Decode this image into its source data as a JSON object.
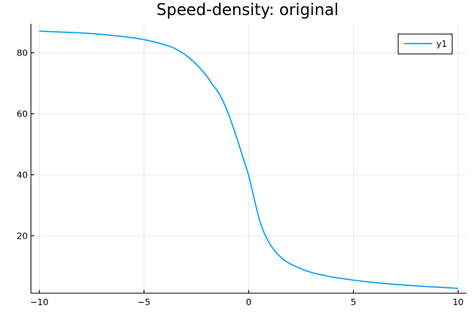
{
  "chart_data": {
    "type": "line",
    "title": "Speed-density: original",
    "xlabel": "",
    "ylabel": "",
    "xlim": [
      -10.4,
      10.4
    ],
    "ylim": [
      1.2,
      89.5
    ],
    "xticks": [
      -10,
      -5,
      0,
      5,
      10
    ],
    "xtick_labels": [
      "−10",
      "−5",
      "0",
      "5",
      "10"
    ],
    "yticks": [
      20,
      40,
      60,
      80
    ],
    "ytick_labels": [
      "20",
      "40",
      "60",
      "80"
    ],
    "grid": true,
    "legend": "top-right",
    "series": [
      {
        "name": "y1",
        "color": "#009af9",
        "x": [
          -10,
          -9,
          -8,
          -7,
          -6,
          -5,
          -4,
          -3.5,
          -3,
          -2.5,
          -2,
          -1.75,
          -1.5,
          -1.25,
          -1,
          -0.75,
          -0.5,
          -0.25,
          0,
          0.25,
          0.5,
          0.75,
          1,
          1.25,
          1.5,
          1.75,
          2,
          2.5,
          3,
          3.5,
          4,
          5,
          6,
          7,
          8,
          9,
          10
        ],
        "y": [
          87.1,
          86.8,
          86.5,
          86.0,
          85.3,
          84.3,
          82.6,
          81.3,
          79.2,
          76.2,
          72.3,
          69.8,
          67.5,
          64.5,
          60.5,
          55.8,
          50.6,
          45.2,
          39.7,
          32.5,
          25.6,
          20.8,
          17.5,
          15.0,
          13.2,
          11.8,
          10.8,
          9.2,
          8.0,
          7.2,
          6.5,
          5.5,
          4.7,
          4.1,
          3.6,
          3.2,
          2.8
        ]
      }
    ]
  }
}
